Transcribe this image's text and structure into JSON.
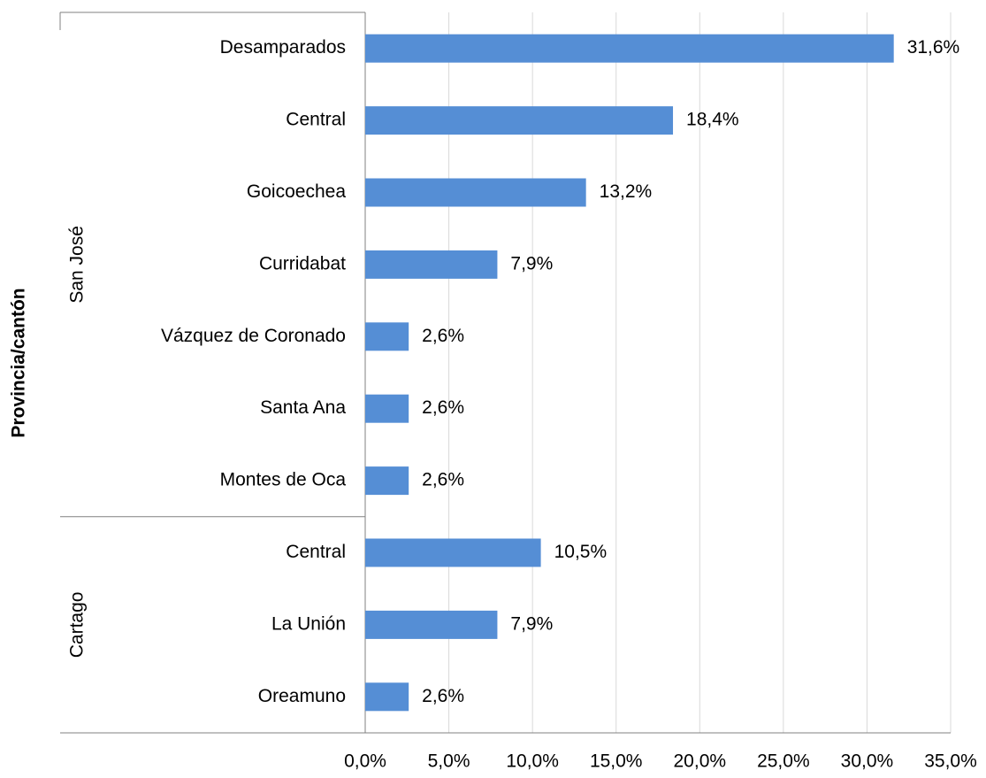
{
  "chart_data": {
    "type": "bar",
    "orientation": "horizontal",
    "y_label": "Provincia/cantón",
    "groups": [
      {
        "name": "San José",
        "categories": [
          "Desamparados",
          "Central",
          "Goicoechea",
          "Curridabat",
          "Vázquez de Coronado",
          "Santa Ana",
          "Montes de Oca"
        ],
        "values": [
          31.6,
          18.4,
          13.2,
          7.9,
          2.6,
          2.6,
          2.6
        ],
        "value_labels": [
          "31,6%",
          "18,4%",
          "13,2%",
          "7,9%",
          "2,6%",
          "2,6%",
          "2,6%"
        ]
      },
      {
        "name": "Cartago",
        "categories": [
          "Central",
          "La Unión",
          "Oreamuno"
        ],
        "values": [
          10.5,
          7.9,
          2.6
        ],
        "value_labels": [
          "10,5%",
          "7,9%",
          "2,6%"
        ]
      }
    ],
    "color": "#558ed5",
    "xlim": [
      0,
      35
    ],
    "xticks": [
      {
        "value": 0,
        "label": "0,0%"
      },
      {
        "value": 5,
        "label": "5,0%"
      },
      {
        "value": 10,
        "label": "10,0%"
      },
      {
        "value": 15,
        "label": "15,0%"
      },
      {
        "value": 20,
        "label": "20,0%"
      },
      {
        "value": 25,
        "label": "25,0%"
      },
      {
        "value": 30,
        "label": "30,0%"
      },
      {
        "value": 35,
        "label": "35,0%"
      }
    ],
    "grid": true
  }
}
